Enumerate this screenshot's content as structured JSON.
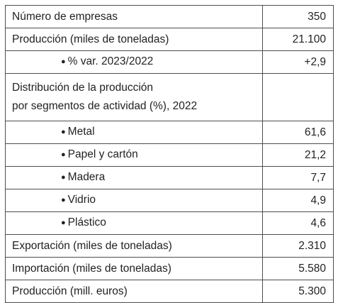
{
  "table": {
    "rows": [
      {
        "label": "Número de empresas",
        "value": "350"
      },
      {
        "label": "Producción (miles de toneladas)",
        "value": "21.100"
      },
      {
        "label": "% var. 2023/2022",
        "value": "+2,9"
      },
      {
        "label_line1": "Distribución de la producción",
        "label_line2": "por segmentos de actividad (%), 2022",
        "value": ""
      },
      {
        "label": "Metal",
        "value": "61,6"
      },
      {
        "label": "Papel y cartón",
        "value": "21,2"
      },
      {
        "label": "Madera",
        "value": "7,7"
      },
      {
        "label": "Vidrio",
        "value": "4,9"
      },
      {
        "label": "Plástico",
        "value": "4,6"
      },
      {
        "label": "Exportación (miles de toneladas)",
        "value": "2.310"
      },
      {
        "label": "Importación (miles de toneladas)",
        "value": "5.580"
      },
      {
        "label": "Producción (mill. euros)",
        "value": "5.300"
      }
    ],
    "bullet_glyph": "●"
  },
  "colors": {
    "border": "#4d4d4d",
    "text": "#222222",
    "background": "#ffffff"
  }
}
